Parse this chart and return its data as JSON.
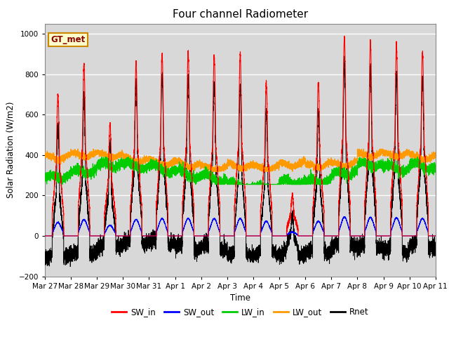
{
  "title": "Four channel Radiometer",
  "ylabel": "Solar Radiation (W/m2)",
  "xlabel": "Time",
  "ylim": [
    -200,
    1050
  ],
  "yticks": [
    -200,
    0,
    200,
    400,
    600,
    800,
    1000
  ],
  "date_labels": [
    "Mar 27",
    "Mar 28",
    "Mar 29",
    "Mar 30",
    "Mar 31",
    "Apr 1",
    "Apr 2",
    "Apr 3",
    "Apr 4",
    "Apr 5",
    "Apr 6",
    "Apr 7",
    "Apr 8",
    "Apr 9",
    "Apr 10",
    "Apr 11"
  ],
  "legend_label": "GT_met",
  "colors": {
    "SW_in": "#ff0000",
    "SW_out": "#0000ff",
    "LW_in": "#00cc00",
    "LW_out": "#ff9900",
    "Rnet": "#000000"
  },
  "bg_color": "#d8d8d8",
  "fig_bg": "#ffffff",
  "n_days": 15,
  "pts_per_day": 480,
  "peak_sw": [
    700,
    845,
    555,
    855,
    900,
    910,
    890,
    900,
    760,
    200,
    760,
    980,
    960,
    940,
    910
  ],
  "night_rnet": -100
}
